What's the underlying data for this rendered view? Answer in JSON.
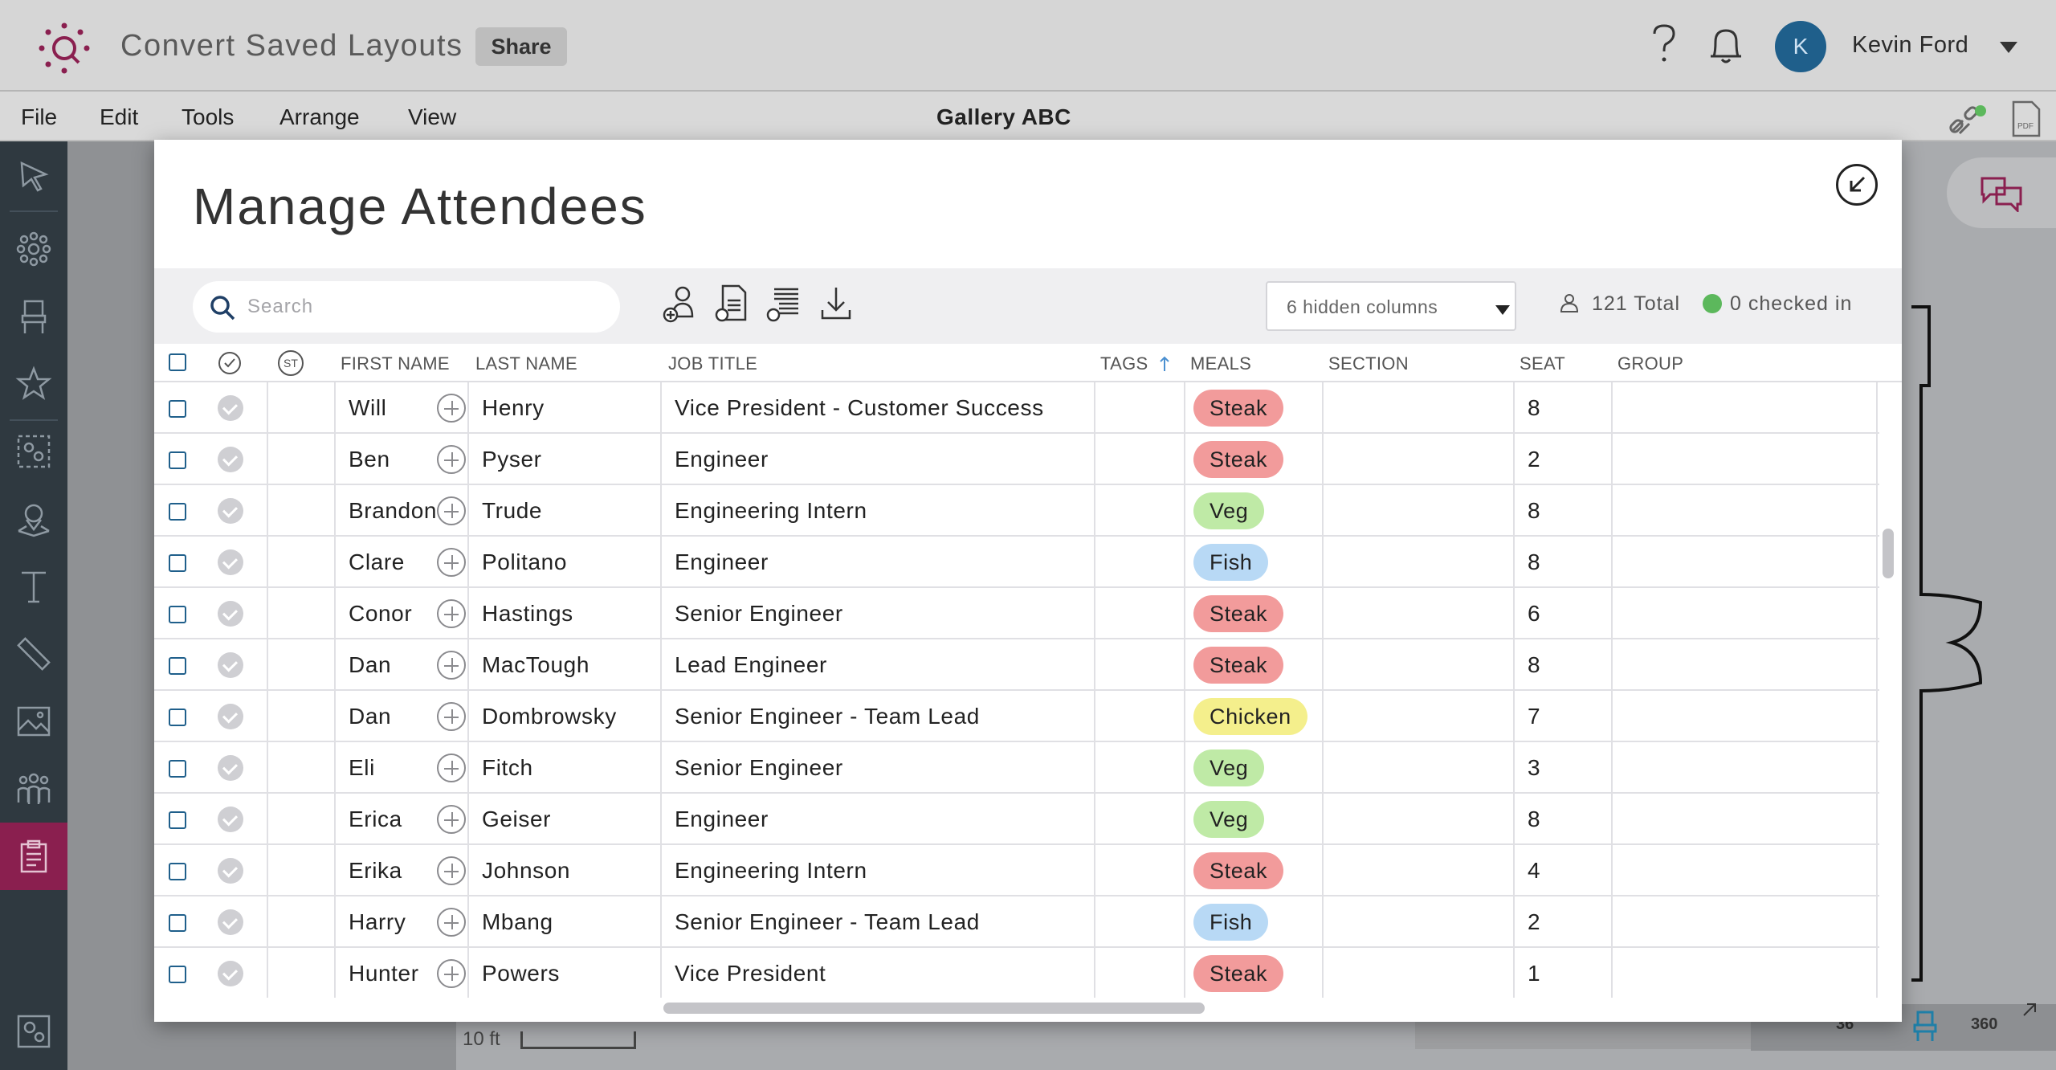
{
  "app": {
    "title": "Convert Saved Layouts",
    "share_label": "Share"
  },
  "user": {
    "initial": "K",
    "name": "Kevin Ford"
  },
  "menu": {
    "items": [
      "File",
      "Edit",
      "Tools",
      "Arrange",
      "View"
    ],
    "document_title": "Gallery ABC"
  },
  "canvas": {
    "scale_label": "10 ft",
    "counter_a": "36",
    "counter_b": "360"
  },
  "modal": {
    "title": "Manage Attendees",
    "search_placeholder": "Search",
    "hidden_columns": "6 hidden columns",
    "total": "121 Total",
    "checked_in": "0 checked in",
    "columns": {
      "status": "ST",
      "first": "FIRST NAME",
      "last": "LAST NAME",
      "job": "JOB TITLE",
      "tags": "TAGS",
      "meals": "MEALS",
      "section": "SECTION",
      "seat": "SEAT",
      "group": "GROUP"
    },
    "rows": [
      {
        "first": "Will",
        "last": "Henry",
        "job": "Vice President - Customer Success",
        "meal": "Steak",
        "seat": "8"
      },
      {
        "first": "Ben",
        "last": "Pyser",
        "job": "Engineer",
        "meal": "Steak",
        "seat": "2"
      },
      {
        "first": "Brandon",
        "last": "Trude",
        "job": "Engineering Intern",
        "meal": "Veg",
        "seat": "8"
      },
      {
        "first": "Clare",
        "last": "Politano",
        "job": "Engineer",
        "meal": "Fish",
        "seat": "8"
      },
      {
        "first": "Conor",
        "last": "Hastings",
        "job": "Senior Engineer",
        "meal": "Steak",
        "seat": "6"
      },
      {
        "first": "Dan",
        "last": "MacTough",
        "job": "Lead Engineer",
        "meal": "Steak",
        "seat": "8"
      },
      {
        "first": "Dan",
        "last": "Dombrowsky",
        "job": "Senior Engineer - Team Lead",
        "meal": "Chicken",
        "seat": "7"
      },
      {
        "first": "Eli",
        "last": "Fitch",
        "job": "Senior Engineer",
        "meal": "Veg",
        "seat": "3"
      },
      {
        "first": "Erica",
        "last": "Geiser",
        "job": "Engineer",
        "meal": "Veg",
        "seat": "8"
      },
      {
        "first": "Erika",
        "last": "Johnson",
        "job": "Engineering Intern",
        "meal": "Steak",
        "seat": "4"
      },
      {
        "first": "Harry",
        "last": "Mbang",
        "job": "Senior Engineer - Team Lead",
        "meal": "Fish",
        "seat": "2"
      },
      {
        "first": "Hunter",
        "last": "Powers",
        "job": "Vice President",
        "meal": "Steak",
        "seat": "1"
      }
    ]
  },
  "colors": {
    "brand": "#8a1f4f",
    "meal_colors": {
      "Steak": "#f29b9b",
      "Veg": "#bfeaa6",
      "Fish": "#b8d9f5",
      "Chicken": "#f4ef8c"
    }
  },
  "icons": [
    "logo-icon",
    "help-icon",
    "bell-icon",
    "link-icon",
    "pdf-icon",
    "chat-icon",
    "search-icon",
    "add-attendee-icon",
    "import-icon",
    "list-icon",
    "download-icon",
    "collapse-icon"
  ]
}
